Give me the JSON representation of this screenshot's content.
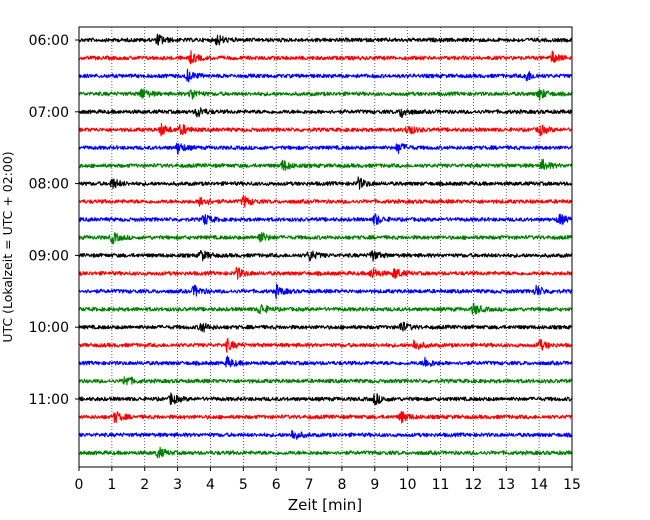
{
  "chart_data": {
    "type": "line",
    "chart_kind": "helicorder",
    "xlabel": "Zeit  [min]",
    "ylabel": "UTC (Lokalzeit = UTC + 02:00)",
    "xlim": [
      0,
      15
    ],
    "x_ticks": [
      "0",
      "1",
      "2",
      "3",
      "4",
      "5",
      "6",
      "7",
      "8",
      "9",
      "10",
      "11",
      "12",
      "13",
      "14",
      "15"
    ],
    "grid": "vertical dotted",
    "row_interval_min": 15,
    "first_row": "06:00",
    "row_count": 24,
    "y_tick_labels": [
      "06:00",
      "07:00",
      "08:00",
      "09:00",
      "10:00",
      "11:00"
    ],
    "color_cycle": [
      "#000000",
      "#ff0000",
      "#0000ff",
      "#008000"
    ],
    "series": [
      {
        "start": "06:00",
        "events_min": [
          2.4,
          4.2
        ]
      },
      {
        "start": "06:15",
        "events_min": [
          3.4,
          14.4
        ]
      },
      {
        "start": "06:30",
        "events_min": [
          3.3,
          13.6
        ]
      },
      {
        "start": "06:45",
        "events_min": [
          1.9,
          3.4,
          14.0
        ]
      },
      {
        "start": "07:00",
        "events_min": [
          3.6,
          9.8
        ]
      },
      {
        "start": "07:15",
        "events_min": [
          2.5,
          3.1,
          10.0,
          14.0
        ]
      },
      {
        "start": "07:30",
        "events_min": [
          3.0,
          9.7
        ]
      },
      {
        "start": "07:45",
        "events_min": [
          6.2,
          14.1
        ]
      },
      {
        "start": "08:00",
        "events_min": [
          1.0,
          8.5
        ]
      },
      {
        "start": "08:15",
        "events_min": [
          3.7,
          5.0
        ]
      },
      {
        "start": "08:30",
        "events_min": [
          3.8,
          9.0,
          14.6
        ]
      },
      {
        "start": "08:45",
        "events_min": [
          1.0,
          5.5
        ]
      },
      {
        "start": "09:00",
        "events_min": [
          3.7,
          7.0,
          8.9
        ]
      },
      {
        "start": "09:15",
        "events_min": [
          4.8,
          8.9,
          9.6
        ]
      },
      {
        "start": "09:30",
        "events_min": [
          3.5,
          6.0,
          13.9
        ]
      },
      {
        "start": "09:45",
        "events_min": [
          5.5,
          12.0
        ]
      },
      {
        "start": "10:00",
        "events_min": [
          3.7,
          9.8
        ]
      },
      {
        "start": "10:15",
        "events_min": [
          4.5,
          10.2,
          14.0
        ]
      },
      {
        "start": "10:30",
        "events_min": [
          4.5,
          10.5
        ]
      },
      {
        "start": "10:45",
        "events_min": [
          1.4
        ]
      },
      {
        "start": "11:00",
        "events_min": [
          2.8,
          9.0
        ]
      },
      {
        "start": "11:15",
        "events_min": [
          1.1,
          9.8
        ]
      },
      {
        "start": "11:30",
        "events_min": [
          6.5
        ]
      },
      {
        "start": "11:45",
        "events_min": [
          2.4
        ]
      }
    ]
  }
}
